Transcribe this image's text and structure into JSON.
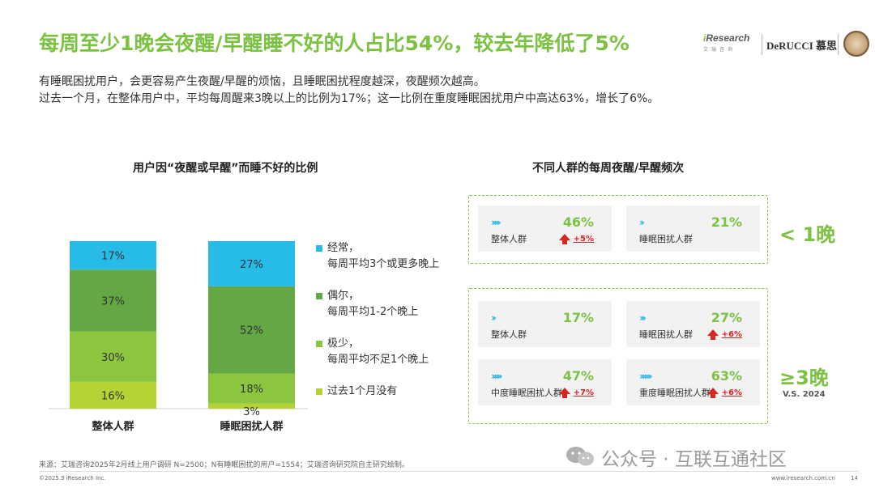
{
  "header": {
    "title": "每周至少1晚会夜醒/早醒睡不好的人占比54%，较去年降低了5%",
    "desc_line1": "有睡眠困扰用户，会更容易产生夜醒/早醒的烦恼，且睡眠困扰程度越深，夜醒频次越高。",
    "desc_line2": "过去一个月，在整体用户中，平均每周醒来3晚以上的比例为17%；这一比例在重度睡眠困扰用户中高达63%，增长了6%。",
    "logo_ir_prefix": "i",
    "logo_ir_main": "Research",
    "logo_ir_sub": "艾瑞咨询",
    "logo_de": "DeRUCCI 慕思"
  },
  "left_chart": {
    "heading": "用户因“夜醒或早醒”而睡不好的比例"
  },
  "chart_data": {
    "type": "bar",
    "stacked": true,
    "percent_stacked": true,
    "categories": [
      "整体人群",
      "睡眠困扰人群"
    ],
    "series": [
      {
        "name": "过去1个月没有",
        "color": "#b5d334",
        "values": [
          16,
          3
        ],
        "labels": [
          "16%",
          "3%"
        ]
      },
      {
        "name": "极少，每周平均不足1个晚上",
        "color": "#8cc63f",
        "values": [
          30,
          18
        ],
        "labels": [
          "30%",
          "18%"
        ]
      },
      {
        "name": "偶尔，每周平均1-2个晚上",
        "color": "#63a844",
        "values": [
          37,
          52
        ],
        "labels": [
          "37%",
          "52%"
        ]
      },
      {
        "name": "经常，每周平均3个或更多晚上",
        "color": "#27bce8",
        "values": [
          17,
          27
        ],
        "labels": [
          "17%",
          "27%"
        ]
      }
    ],
    "ylim": [
      0,
      100
    ],
    "legend_position": "right"
  },
  "legend": [
    {
      "line1": "经常，",
      "line2": "每周平均3个或更多晚上",
      "color": "#27bce8"
    },
    {
      "line1": "偶尔，",
      "line2": "每周平均1-2个晚上",
      "color": "#63a844"
    },
    {
      "line1": "极少，",
      "line2": "每周平均不足1个晚上",
      "color": "#8cc63f"
    },
    {
      "line1": "过去1个月没有",
      "line2": "",
      "color": "#b5d334"
    }
  ],
  "right_panel": {
    "heading": "不同人群的每周夜醒/早醒频次",
    "less1": {
      "big": "< 1晚",
      "cards": [
        {
          "chevrons": "›››››",
          "pct": "46%",
          "label": "整体人群",
          "change": "+5%"
        },
        {
          "chevrons": "››",
          "pct": "21%",
          "label": "睡眠困扰人群",
          "change": ""
        }
      ]
    },
    "ge3": {
      "big": "≥3晚",
      "sub": "V.S. 2024",
      "cards": [
        {
          "chevrons": "››",
          "pct": "17%",
          "label": "整体人群",
          "change": ""
        },
        {
          "chevrons": "›››",
          "pct": "27%",
          "label": "睡眠困扰人群",
          "change": "+6%"
        },
        {
          "chevrons": "››››››",
          "pct": "47%",
          "label": "中度睡眠困扰人群",
          "change": "+7%"
        },
        {
          "chevrons": "›››››››",
          "pct": "63%",
          "label": "重度睡眠困扰人群",
          "change": "+6%"
        }
      ]
    }
  },
  "footer": {
    "source": "来源：艾瑞咨询2025年2月线上用户调研 N=2500；N有睡眠困扰的用户=1554；艾瑞咨询研究院自主研究绘制。",
    "copyright": "©2025.3 iResearch Inc.",
    "url": "www.iresearch.com.cn",
    "page": "14",
    "watermark": "公众号 · 互联互通社区"
  }
}
